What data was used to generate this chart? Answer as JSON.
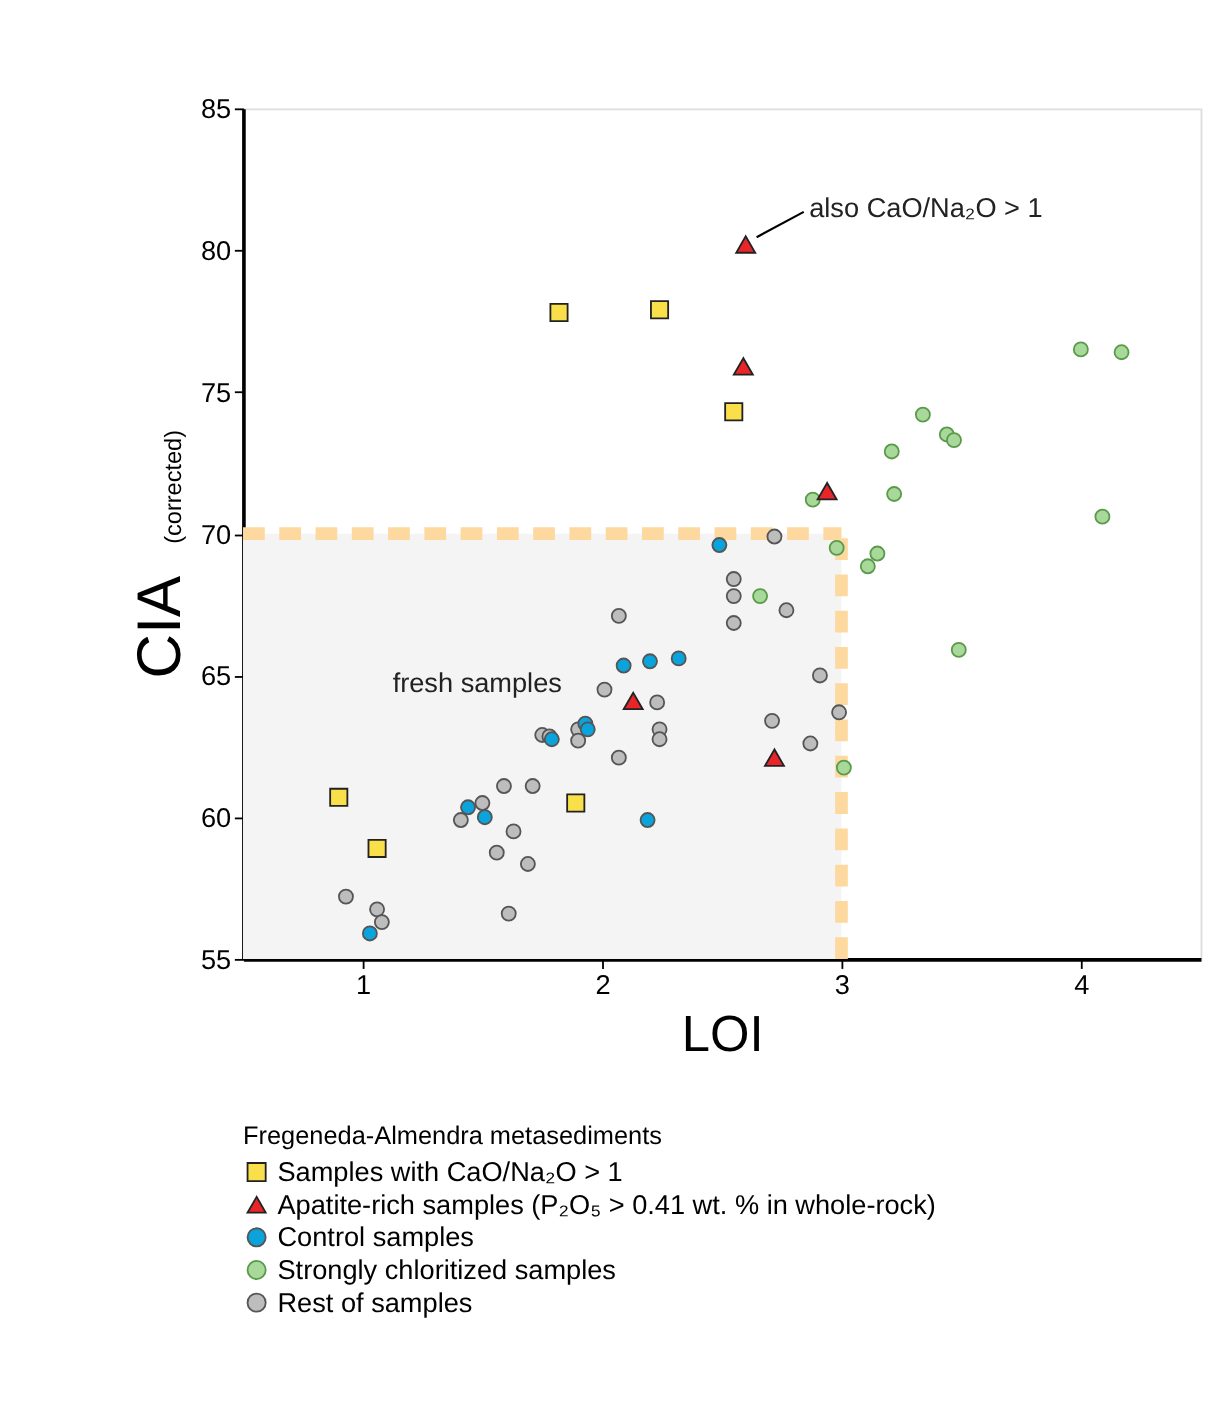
{
  "chart_data": {
    "type": "scatter",
    "xlabel": "LOI",
    "ylabel": "CIA$_{(corrected)}$",
    "legend_title": "Fregeneda-Almendra metasediments",
    "legend": "bottom",
    "xlim": [
      0.5,
      4.5
    ],
    "xticks": [
      1,
      2,
      3,
      4
    ],
    "ylim": [
      55,
      85
    ],
    "yticks": [
      55,
      60,
      65,
      70,
      75,
      80,
      85
    ],
    "grid": false,
    "series": [
      {
        "name": "Samples with CaO/Na₂O > 1",
        "color": "#f9e04b",
        "marker": "square",
        "x": [
          0.9,
          1.06,
          1.89,
          1.82,
          2.24,
          2.55
        ],
        "values": [
          60.7,
          58.9,
          60.5,
          77.8,
          77.9,
          74.3
        ]
      },
      {
        "name": "Apatite-rich samples (P₂O₅ > 0.41 wt. % in whole-rock)",
        "color": "#e8262a",
        "marker": "triangle",
        "x": [
          2.6,
          2.59,
          2.94,
          2.13,
          2.72
        ],
        "values": [
          80.2,
          75.9,
          71.5,
          64.1,
          62.1
        ]
      },
      {
        "name": "Control samples",
        "color": "#0aa3dc",
        "marker": "circle",
        "x": [
          1.03,
          1.44,
          1.51,
          1.79,
          1.93,
          1.94,
          2.09,
          2.2,
          2.32,
          2.19,
          2.49
        ],
        "values": [
          55.9,
          60.35,
          60.0,
          62.75,
          63.3,
          63.1,
          65.35,
          65.5,
          65.6,
          59.9,
          69.6
        ]
      },
      {
        "name": "Strongly chloritized samples",
        "color": "#a8d99a",
        "marker": "circle",
        "x": [
          4.0,
          4.17,
          3.34,
          3.44,
          3.47,
          3.21,
          3.22,
          2.88,
          4.09,
          2.98,
          3.15,
          3.11,
          2.66,
          3.49,
          3.01
        ],
        "values": [
          76.5,
          76.4,
          74.2,
          73.5,
          73.3,
          72.9,
          71.4,
          71.2,
          70.6,
          69.5,
          69.3,
          68.85,
          67.8,
          65.9,
          61.75
        ]
      },
      {
        "name": "Rest of samples",
        "color": "#bdbdbd",
        "marker": "circle",
        "x": [
          2.72,
          2.55,
          2.55,
          2.55,
          2.77,
          2.91,
          2.99,
          2.71,
          2.87,
          2.07,
          2.01,
          2.23,
          2.24,
          2.24,
          1.9,
          1.9,
          1.75,
          1.78,
          2.07,
          1.59,
          1.71,
          1.5,
          1.41,
          1.63,
          1.56,
          1.69,
          1.61,
          0.93,
          1.06,
          1.08
        ],
        "values": [
          69.9,
          68.4,
          67.8,
          66.85,
          67.3,
          65.0,
          63.7,
          63.4,
          62.6,
          67.1,
          64.5,
          64.05,
          63.1,
          62.75,
          63.1,
          62.7,
          62.9,
          62.85,
          62.1,
          61.1,
          61.1,
          60.5,
          59.9,
          59.5,
          58.75,
          58.35,
          56.6,
          57.2,
          56.75,
          56.3
        ]
      }
    ],
    "ref_lines": [
      {
        "axis": "y",
        "value": 70,
        "color": "#fdd9a0",
        "line_style": "dashed"
      },
      {
        "axis": "x",
        "value": 3,
        "color": "#fdd9a0",
        "line_style": "dashed"
      }
    ],
    "bands": [
      {
        "axis": "y",
        "from": 55,
        "to": 70,
        "label": "fresh samples",
        "color": "#f4f4f4"
      }
    ],
    "annotations": [
      {
        "text": "also CaO/Na₂O > 1",
        "x": 2.6,
        "y": 80.2
      }
    ]
  }
}
